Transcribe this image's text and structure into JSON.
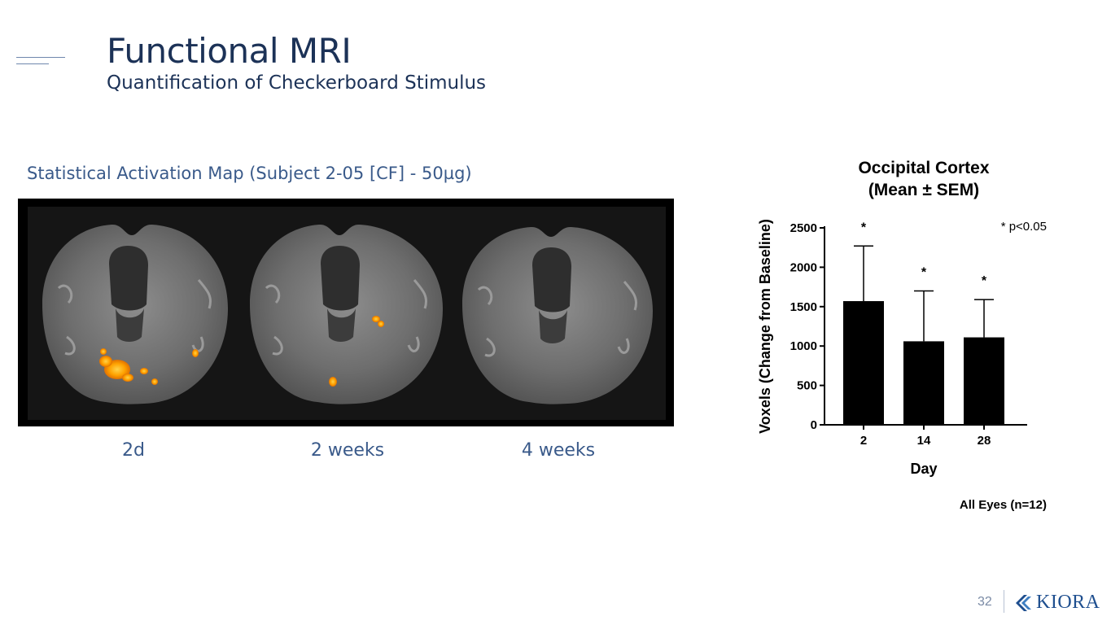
{
  "slide": {
    "title": "Functional MRI",
    "subtitle": "Quantification of Checkerboard Stimulus",
    "page_number": "32",
    "logo_text": "KIORA",
    "colors": {
      "title": "#1c3257",
      "accent": "#3a5a8a",
      "activation": "#ffa500",
      "logo": "#1f4f8f"
    }
  },
  "activation_map": {
    "heading": "Statistical Activation Map (Subject 2-05 [CF] - 50µg)",
    "labels": [
      "2d",
      "2 weeks",
      "4 weeks"
    ]
  },
  "chart_data": {
    "type": "bar",
    "title": "Occipital Cortex",
    "subtitle": "(Mean ± SEM)",
    "categories": [
      "2",
      "14",
      "28"
    ],
    "values": [
      1570,
      1060,
      1110
    ],
    "errors": [
      700,
      640,
      480
    ],
    "significance": [
      "*",
      "*",
      "*"
    ],
    "significance_note": "* p<0.05",
    "xlabel": "Day",
    "ylabel": "Voxels (Change from Baseline)",
    "ylim": [
      0,
      2500
    ],
    "yticks": [
      "0",
      "500",
      "1000",
      "1500",
      "2000",
      "2500"
    ],
    "footnote": "All Eyes (n=12)",
    "bar_color": "#000000",
    "grid": false
  }
}
